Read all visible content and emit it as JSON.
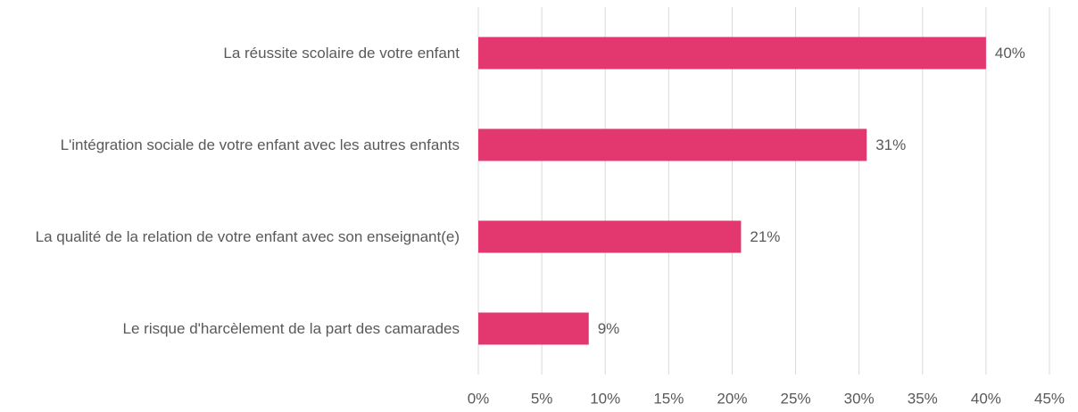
{
  "chart_data": {
    "type": "barh",
    "categories": [
      "La réussite scolaire de votre enfant",
      "L'intégration sociale de votre enfant avec les autres enfants",
      "La qualité de la relation de votre enfant avec son enseignant(e)",
      "Le risque d'harcèlement de la part des camarades"
    ],
    "values": [
      40,
      30.6,
      20.7,
      8.7
    ],
    "value_labels": [
      "40%",
      "31%",
      "21%",
      "9%"
    ],
    "color": "#e2386f",
    "xlim": [
      0,
      45
    ],
    "xticks": [
      {
        "value": 0,
        "label": "0%"
      },
      {
        "value": 5,
        "label": "5%"
      },
      {
        "value": 10,
        "label": "10%"
      },
      {
        "value": 15,
        "label": "15%"
      },
      {
        "value": 20,
        "label": "20%"
      },
      {
        "value": 25,
        "label": "25%"
      },
      {
        "value": 30,
        "label": "30%"
      },
      {
        "value": 35,
        "label": "35%"
      },
      {
        "value": 40,
        "label": "40%"
      },
      {
        "value": 45,
        "label": "45%"
      }
    ],
    "grid": true
  }
}
